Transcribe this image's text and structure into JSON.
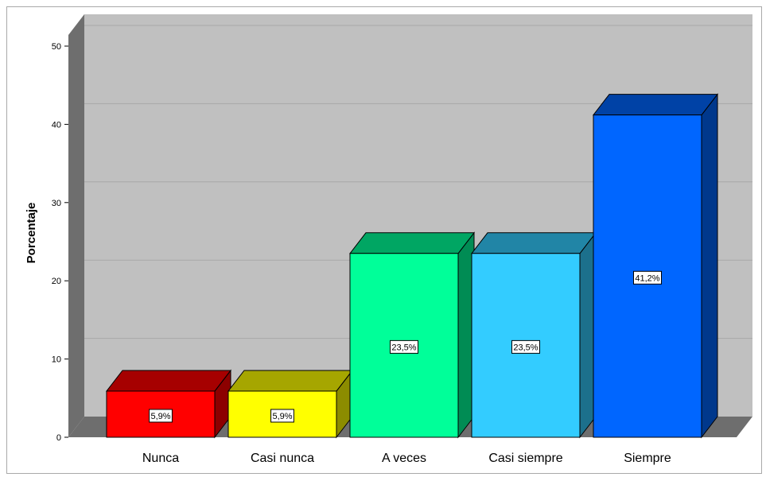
{
  "chart_data": {
    "type": "bar",
    "categories": [
      "Nunca",
      "Casi nunca",
      "A veces",
      "Casi siempre",
      "Siempre"
    ],
    "values": [
      5.9,
      5.9,
      23.5,
      23.5,
      41.2
    ],
    "data_labels": [
      "5,9%",
      "5,9%",
      "23,5%",
      "23,5%",
      "41,2%"
    ],
    "colors": [
      "#ff0000",
      "#ffff00",
      "#00ff99",
      "#33ccff",
      "#0066ff"
    ],
    "title": "",
    "xlabel": "",
    "ylabel": "Porcentaje",
    "ylim": [
      0,
      50
    ],
    "yticks": [
      "0",
      "10",
      "20",
      "30",
      "40",
      "50"
    ],
    "grid": true,
    "style": "3d",
    "background": "#c0c0c0"
  }
}
